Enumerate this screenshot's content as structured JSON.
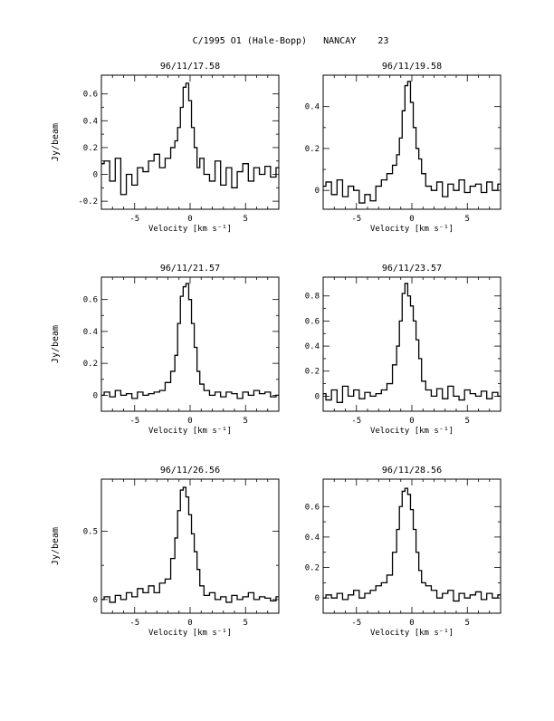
{
  "figure": {
    "title": "C/1995 O1 (Hale-Bopp)   NANCAY    23"
  },
  "chart_data": [
    {
      "type": "line",
      "title": "96/11/17.58",
      "xlabel": "Velocity [km s⁻¹]",
      "ylabel": "Jy/beam",
      "xlim": [
        -8,
        8
      ],
      "ylim": [
        -0.26,
        0.74
      ],
      "xticks": [
        -5,
        0,
        5
      ],
      "yticks": [
        -0.2,
        0,
        0.2,
        0.4,
        0.6
      ],
      "ytick_labels": [
        "-0.2",
        "0",
        "0.2",
        "0.4",
        "0.6"
      ],
      "series": [
        {
          "x": [
            -8.0,
            -7.5,
            -7.0,
            -6.5,
            -6.0,
            -5.5,
            -5.0,
            -4.5,
            -4.0,
            -3.5,
            -3.0,
            -2.5,
            -2.0,
            -1.5,
            -1.25,
            -1.0,
            -0.75,
            -0.5,
            -0.25,
            0.0,
            0.25,
            0.5,
            0.75,
            1.0,
            1.5,
            2.0,
            2.5,
            3.0,
            3.5,
            4.0,
            4.5,
            5.0,
            5.5,
            6.0,
            6.5,
            7.0,
            7.5,
            8.0
          ],
          "y": [
            0.08,
            0.1,
            -0.05,
            0.12,
            -0.15,
            0.0,
            -0.08,
            0.05,
            0.02,
            0.1,
            0.15,
            0.05,
            0.12,
            0.2,
            0.25,
            0.35,
            0.5,
            0.65,
            0.68,
            0.55,
            0.35,
            0.2,
            0.05,
            0.12,
            0.0,
            -0.05,
            0.1,
            -0.08,
            0.05,
            -0.1,
            0.02,
            0.08,
            -0.05,
            0.05,
            0.0,
            0.06,
            -0.02,
            0.05
          ]
        }
      ]
    },
    {
      "type": "line",
      "title": "96/11/19.58",
      "xlabel": "Velocity [km s⁻¹]",
      "ylabel": "",
      "xlim": [
        -8,
        8
      ],
      "ylim": [
        -0.09,
        0.55
      ],
      "xticks": [
        -5,
        0,
        5
      ],
      "yticks": [
        0,
        0.2,
        0.4
      ],
      "ytick_labels": [
        "0",
        "0.2",
        "0.4"
      ],
      "series": [
        {
          "x": [
            -8.0,
            -7.5,
            -7.0,
            -6.5,
            -6.0,
            -5.5,
            -5.0,
            -4.5,
            -4.0,
            -3.5,
            -3.0,
            -2.5,
            -2.0,
            -1.5,
            -1.25,
            -1.0,
            -0.75,
            -0.5,
            -0.25,
            0.0,
            0.25,
            0.5,
            0.75,
            1.0,
            1.5,
            2.0,
            2.5,
            3.0,
            3.5,
            4.0,
            4.5,
            5.0,
            5.5,
            6.0,
            6.5,
            7.0,
            7.5,
            8.0
          ],
          "y": [
            0.02,
            0.04,
            -0.02,
            0.05,
            -0.03,
            0.02,
            0.0,
            -0.06,
            -0.02,
            -0.05,
            0.02,
            0.05,
            0.08,
            0.12,
            0.17,
            0.25,
            0.38,
            0.5,
            0.52,
            0.42,
            0.3,
            0.2,
            0.15,
            0.08,
            0.02,
            0.0,
            0.04,
            -0.03,
            0.03,
            0.0,
            0.05,
            -0.01,
            0.02,
            0.03,
            -0.01,
            0.04,
            0.0,
            0.03
          ]
        }
      ]
    },
    {
      "type": "line",
      "title": "96/11/21.57",
      "xlabel": "Velocity [km s⁻¹]",
      "ylabel": "Jy/beam",
      "xlim": [
        -8,
        8
      ],
      "ylim": [
        -0.1,
        0.74
      ],
      "xticks": [
        -5,
        0,
        5
      ],
      "yticks": [
        0,
        0.2,
        0.4,
        0.6
      ],
      "ytick_labels": [
        "0",
        "0.2",
        "0.4",
        "0.6"
      ],
      "series": [
        {
          "x": [
            -8.0,
            -7.5,
            -7.0,
            -6.5,
            -6.0,
            -5.5,
            -5.0,
            -4.5,
            -4.0,
            -3.5,
            -3.0,
            -2.5,
            -2.0,
            -1.5,
            -1.25,
            -1.0,
            -0.75,
            -0.5,
            -0.25,
            0.0,
            0.25,
            0.5,
            0.75,
            1.0,
            1.5,
            2.0,
            2.5,
            3.0,
            3.5,
            4.0,
            4.5,
            5.0,
            5.5,
            6.0,
            6.5,
            7.0,
            7.5,
            8.0
          ],
          "y": [
            0.0,
            0.02,
            -0.01,
            0.03,
            0.0,
            0.01,
            -0.02,
            0.02,
            0.0,
            0.01,
            0.02,
            0.03,
            0.08,
            0.15,
            0.25,
            0.45,
            0.62,
            0.68,
            0.7,
            0.6,
            0.45,
            0.3,
            0.15,
            0.07,
            0.03,
            0.0,
            0.02,
            -0.01,
            0.02,
            0.01,
            -0.02,
            0.02,
            0.0,
            0.03,
            0.01,
            0.02,
            -0.01,
            0.0
          ]
        }
      ]
    },
    {
      "type": "line",
      "title": "96/11/23.57",
      "xlabel": "Velocity [km s⁻¹]",
      "ylabel": "",
      "xlim": [
        -8,
        8
      ],
      "ylim": [
        -0.12,
        0.95
      ],
      "xticks": [
        -5,
        0,
        5
      ],
      "yticks": [
        0,
        0.2,
        0.4,
        0.6,
        0.8
      ],
      "ytick_labels": [
        "0",
        "0.2",
        "0.4",
        "0.6",
        "0.8"
      ],
      "series": [
        {
          "x": [
            -8.0,
            -7.5,
            -7.0,
            -6.5,
            -6.0,
            -5.5,
            -5.0,
            -4.5,
            -4.0,
            -3.5,
            -3.0,
            -2.5,
            -2.0,
            -1.5,
            -1.25,
            -1.0,
            -0.75,
            -0.5,
            -0.25,
            0.0,
            0.25,
            0.5,
            0.75,
            1.0,
            1.5,
            2.0,
            2.5,
            3.0,
            3.5,
            4.0,
            4.5,
            5.0,
            5.5,
            6.0,
            6.5,
            7.0,
            7.5,
            8.0
          ],
          "y": [
            0.02,
            -0.03,
            0.05,
            -0.05,
            0.08,
            0.0,
            0.05,
            -0.02,
            0.03,
            0.0,
            0.02,
            0.05,
            0.1,
            0.25,
            0.4,
            0.6,
            0.82,
            0.9,
            0.8,
            0.72,
            0.6,
            0.45,
            0.3,
            0.12,
            0.05,
            0.0,
            0.06,
            -0.02,
            0.08,
            0.0,
            -0.03,
            0.05,
            0.02,
            0.0,
            0.04,
            -0.02,
            0.03,
            0.0
          ]
        }
      ]
    },
    {
      "type": "line",
      "title": "96/11/26.56",
      "xlabel": "Velocity [km s⁻¹]",
      "ylabel": "Jy/beam",
      "xlim": [
        -8,
        8
      ],
      "ylim": [
        -0.1,
        0.88
      ],
      "xticks": [
        -5,
        0,
        5
      ],
      "yticks": [
        0,
        0.5
      ],
      "ytick_labels": [
        "0",
        "0.5"
      ],
      "series": [
        {
          "x": [
            -8.0,
            -7.5,
            -7.0,
            -6.5,
            -6.0,
            -5.5,
            -5.0,
            -4.5,
            -4.0,
            -3.5,
            -3.0,
            -2.5,
            -2.0,
            -1.5,
            -1.25,
            -1.0,
            -0.75,
            -0.5,
            -0.25,
            0.0,
            0.25,
            0.5,
            0.75,
            1.0,
            1.5,
            2.0,
            2.5,
            3.0,
            3.5,
            4.0,
            4.5,
            5.0,
            5.5,
            6.0,
            6.5,
            7.0,
            7.5,
            8.0
          ],
          "y": [
            0.0,
            0.02,
            -0.02,
            0.03,
            0.0,
            0.05,
            0.02,
            0.08,
            0.05,
            0.1,
            0.05,
            0.12,
            0.15,
            0.3,
            0.45,
            0.65,
            0.8,
            0.82,
            0.75,
            0.62,
            0.48,
            0.35,
            0.22,
            0.1,
            0.03,
            0.05,
            0.0,
            0.02,
            -0.02,
            0.03,
            0.0,
            0.02,
            0.05,
            0.0,
            0.02,
            0.01,
            -0.01,
            0.02
          ]
        }
      ]
    },
    {
      "type": "line",
      "title": "96/11/28.56",
      "xlabel": "Velocity [km s⁻¹]",
      "ylabel": "",
      "xlim": [
        -8,
        8
      ],
      "ylim": [
        -0.1,
        0.78
      ],
      "xticks": [
        -5,
        0,
        5
      ],
      "yticks": [
        0,
        0.2,
        0.4,
        0.6
      ],
      "ytick_labels": [
        "0",
        "0.2",
        "0.4",
        "0.6"
      ],
      "series": [
        {
          "x": [
            -8.0,
            -7.5,
            -7.0,
            -6.5,
            -6.0,
            -5.5,
            -5.0,
            -4.5,
            -4.0,
            -3.5,
            -3.0,
            -2.5,
            -2.0,
            -1.5,
            -1.25,
            -1.0,
            -0.75,
            -0.5,
            -0.25,
            0.0,
            0.25,
            0.5,
            0.75,
            1.0,
            1.5,
            2.0,
            2.5,
            3.0,
            3.5,
            4.0,
            4.5,
            5.0,
            5.5,
            6.0,
            6.5,
            7.0,
            7.5,
            8.0
          ],
          "y": [
            0.0,
            0.02,
            0.0,
            0.03,
            -0.01,
            0.02,
            0.05,
            0.0,
            0.03,
            0.05,
            0.08,
            0.1,
            0.15,
            0.3,
            0.45,
            0.6,
            0.7,
            0.72,
            0.68,
            0.58,
            0.45,
            0.3,
            0.18,
            0.1,
            0.08,
            0.05,
            0.0,
            0.03,
            0.05,
            -0.02,
            0.03,
            0.0,
            0.02,
            0.04,
            -0.01,
            0.03,
            0.0,
            0.02
          ]
        }
      ]
    }
  ]
}
